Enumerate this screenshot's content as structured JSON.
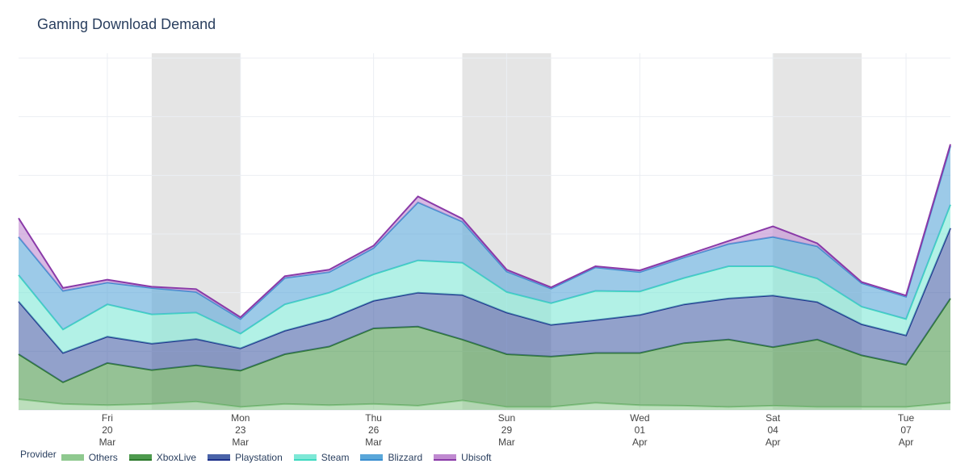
{
  "title": "Gaming Download Demand",
  "legend_title": "Provider",
  "chart_data": {
    "type": "area",
    "stacked": true,
    "title": "Gaming Download Demand",
    "x": [
      "2020-03-18",
      "2020-03-19",
      "2020-03-20",
      "2020-03-21",
      "2020-03-22",
      "2020-03-23",
      "2020-03-24",
      "2020-03-25",
      "2020-03-26",
      "2020-03-27",
      "2020-03-28",
      "2020-03-29",
      "2020-03-30",
      "2020-03-31",
      "2020-04-01",
      "2020-04-02",
      "2020-04-03",
      "2020-04-04",
      "2020-04-05",
      "2020-04-06",
      "2020-04-07",
      "2020-04-08"
    ],
    "ylim": [
      0,
      6
    ],
    "y_ticks": [
      0,
      1,
      2,
      3,
      4,
      5,
      6
    ],
    "y_tick_labels_visible": false,
    "weekend_shading": [
      [
        "2020-03-21",
        "2020-03-23"
      ],
      [
        "2020-03-28",
        "2020-03-30"
      ],
      [
        "2020-04-04",
        "2020-04-06"
      ]
    ],
    "x_ticks": [
      {
        "date": "2020-03-20",
        "label": [
          "Fri",
          "20",
          "Mar"
        ]
      },
      {
        "date": "2020-03-23",
        "label": [
          "Mon",
          "23",
          "Mar"
        ]
      },
      {
        "date": "2020-03-26",
        "label": [
          "Thu",
          "26",
          "Mar"
        ]
      },
      {
        "date": "2020-03-29",
        "label": [
          "Sun",
          "29",
          "Mar"
        ]
      },
      {
        "date": "2020-04-01",
        "label": [
          "Wed",
          "01",
          "Apr"
        ]
      },
      {
        "date": "2020-04-04",
        "label": [
          "Sat",
          "04",
          "Apr"
        ]
      },
      {
        "date": "2020-04-07",
        "label": [
          "Tue",
          "07",
          "Apr"
        ]
      }
    ],
    "grid": true,
    "legend_position": "bottom",
    "series": [
      {
        "name": "Others",
        "color": "#8fc98f",
        "line": "#8fc98f",
        "values": [
          0.18,
          0.1,
          0.08,
          0.1,
          0.14,
          0.05,
          0.1,
          0.08,
          0.1,
          0.07,
          0.16,
          0.05,
          0.05,
          0.12,
          0.08,
          0.07,
          0.05,
          0.07,
          0.05,
          0.05,
          0.05,
          0.12
        ]
      },
      {
        "name": "XboxLive",
        "color": "#4e9a4e",
        "line": "#2d7a2d",
        "values": [
          0.77,
          0.37,
          0.72,
          0.58,
          0.62,
          0.62,
          0.85,
          1.0,
          1.29,
          1.35,
          1.04,
          0.9,
          0.86,
          0.85,
          0.89,
          1.07,
          1.15,
          1.0,
          1.15,
          0.88,
          0.72,
          1.78
        ]
      },
      {
        "name": "Playstation",
        "color": "#4a63a8",
        "line": "#1c2f8a",
        "values": [
          0.9,
          0.5,
          0.45,
          0.45,
          0.45,
          0.38,
          0.4,
          0.47,
          0.47,
          0.58,
          0.76,
          0.71,
          0.54,
          0.56,
          0.65,
          0.66,
          0.7,
          0.88,
          0.64,
          0.53,
          0.5,
          1.2
        ]
      },
      {
        "name": "Steam",
        "color": "#7ee8d6",
        "line": "#3fd9c0",
        "values": [
          0.45,
          0.4,
          0.55,
          0.5,
          0.45,
          0.25,
          0.45,
          0.45,
          0.45,
          0.55,
          0.55,
          0.35,
          0.37,
          0.5,
          0.4,
          0.45,
          0.55,
          0.5,
          0.4,
          0.3,
          0.28,
          0.4
        ]
      },
      {
        "name": "Blizzard",
        "color": "#5aa7d9",
        "line": "#3a8ed0",
        "values": [
          0.65,
          0.66,
          0.37,
          0.45,
          0.35,
          0.25,
          0.45,
          0.35,
          0.45,
          0.99,
          0.7,
          0.35,
          0.25,
          0.4,
          0.33,
          0.35,
          0.38,
          0.5,
          0.55,
          0.4,
          0.38,
          1.0
        ]
      },
      {
        "name": "Ubisoft",
        "color": "#c08ad0",
        "line": "#8a3aa8",
        "values": [
          0.32,
          0.05,
          0.05,
          0.02,
          0.05,
          0.03,
          0.03,
          0.04,
          0.04,
          0.1,
          0.05,
          0.03,
          0.02,
          0.02,
          0.03,
          0.03,
          0.05,
          0.18,
          0.05,
          0.02,
          0.02,
          0.03
        ]
      }
    ]
  }
}
